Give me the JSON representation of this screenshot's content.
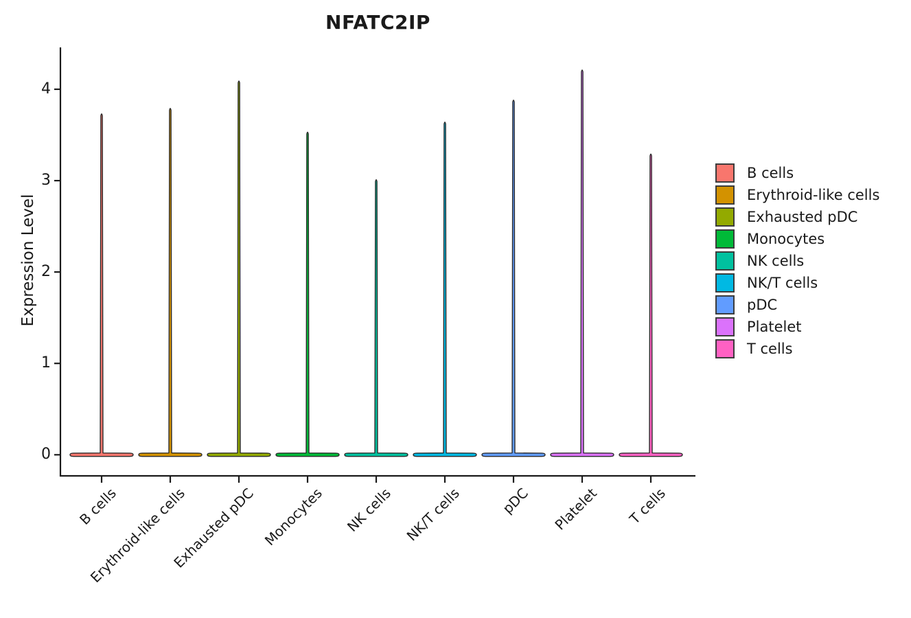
{
  "chart_data": {
    "type": "violin",
    "title": "NFATC2IP",
    "xlabel": "",
    "ylabel": "Expression Level",
    "categories": [
      "B cells",
      "Erythroid-like cells",
      "Exhausted pDC",
      "Monocytes",
      "NK cells",
      "NK/T cells",
      "pDC",
      "Platelet",
      "T cells"
    ],
    "series": [
      {
        "name": "max_expression",
        "values": [
          3.74,
          3.8,
          4.1,
          3.54,
          3.02,
          3.65,
          3.89,
          4.22,
          3.3
        ]
      }
    ],
    "distribution_note": "density almost entirely concentrated at 0; each violin renders as a wide flat base at 0 with a thin spike up to the maximum expression value",
    "yticks": [
      0,
      1,
      2,
      3,
      4
    ],
    "ylim": [
      -0.23,
      4.46
    ],
    "grid": false,
    "legend_position": "right",
    "colors": [
      "#F8766D",
      "#D39200",
      "#93AA00",
      "#00BA38",
      "#00C19F",
      "#00B9E3",
      "#619CFF",
      "#DB72FB",
      "#FF61C3"
    ],
    "violin_outline_color": "#2b2b2b",
    "axis_color": "#1a1a1a",
    "legend": {
      "items": [
        {
          "label": "B cells",
          "color": "#F8766D"
        },
        {
          "label": "Erythroid-like cells",
          "color": "#D39200"
        },
        {
          "label": "Exhausted pDC",
          "color": "#93AA00"
        },
        {
          "label": "Monocytes",
          "color": "#00BA38"
        },
        {
          "label": "NK cells",
          "color": "#00C19F"
        },
        {
          "label": "NK/T cells",
          "color": "#00B9E3"
        },
        {
          "label": "pDC",
          "color": "#619CFF"
        },
        {
          "label": "Platelet",
          "color": "#DB72FB"
        },
        {
          "label": "T cells",
          "color": "#FF61C3"
        }
      ]
    }
  }
}
